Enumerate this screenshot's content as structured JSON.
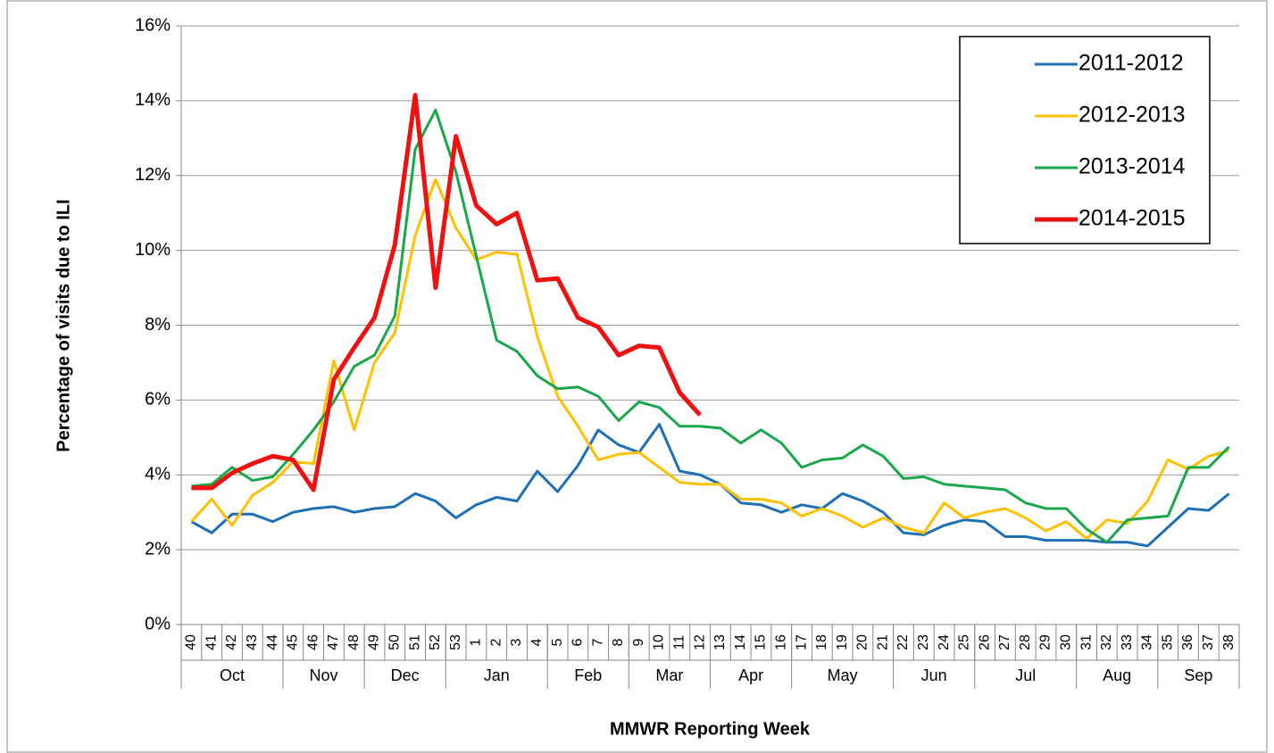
{
  "chart_data": {
    "type": "line",
    "y_label": "Percentage of visits due to ILI",
    "x_label": "MMWR Reporting Week",
    "categories": [
      "40",
      "41",
      "42",
      "43",
      "44",
      "45",
      "46",
      "47",
      "48",
      "49",
      "50",
      "51",
      "52",
      "53",
      "1",
      "2",
      "3",
      "4",
      "5",
      "6",
      "7",
      "8",
      "9",
      "10",
      "11",
      "12",
      "13",
      "14",
      "15",
      "16",
      "17",
      "18",
      "19",
      "20",
      "21",
      "22",
      "23",
      "24",
      "25",
      "26",
      "27",
      "28",
      "29",
      "30",
      "31",
      "32",
      "33",
      "34",
      "35",
      "36",
      "37",
      "38"
    ],
    "month_spans": [
      {
        "label": "Oct",
        "count": 5
      },
      {
        "label": "Nov",
        "count": 4
      },
      {
        "label": "Dec",
        "count": 4
      },
      {
        "label": "Jan",
        "count": 5
      },
      {
        "label": "Feb",
        "count": 4
      },
      {
        "label": "Mar",
        "count": 4
      },
      {
        "label": "Apr",
        "count": 4
      },
      {
        "label": "May",
        "count": 5
      },
      {
        "label": "Jun",
        "count": 4
      },
      {
        "label": "Jul",
        "count": 5
      },
      {
        "label": "Aug",
        "count": 4
      },
      {
        "label": "Sep",
        "count": 4
      }
    ],
    "ylim": [
      0,
      16
    ],
    "yticks": [
      {
        "value": 0,
        "label": "0%"
      },
      {
        "value": 2,
        "label": "2%"
      },
      {
        "value": 4,
        "label": "4%"
      },
      {
        "value": 6,
        "label": "6%"
      },
      {
        "value": 8,
        "label": "8%"
      },
      {
        "value": 10,
        "label": "10%"
      },
      {
        "value": 12,
        "label": "12%"
      },
      {
        "value": 14,
        "label": "14%"
      },
      {
        "value": 16,
        "label": "16%"
      }
    ],
    "grid": true,
    "legend": "upper right",
    "series": [
      {
        "name": "2011-2012",
        "color": "#1f6fb5",
        "width": 3,
        "values": [
          2.75,
          2.45,
          2.95,
          2.95,
          2.75,
          3.0,
          3.1,
          3.15,
          3.0,
          3.1,
          3.15,
          3.5,
          3.3,
          2.85,
          3.2,
          3.4,
          3.3,
          4.1,
          3.55,
          4.25,
          5.2,
          4.8,
          4.6,
          5.35,
          4.1,
          4.0,
          3.75,
          3.25,
          3.2,
          3.0,
          3.2,
          3.1,
          3.5,
          3.3,
          3.0,
          2.45,
          2.4,
          2.65,
          2.8,
          2.75,
          2.35,
          2.35,
          2.25,
          2.25,
          2.25,
          2.2,
          2.2,
          2.1,
          2.6,
          3.1,
          3.05,
          3.5
        ]
      },
      {
        "name": "2012-2013",
        "color": "#ffc000",
        "width": 3,
        "values": [
          2.75,
          3.35,
          2.65,
          3.45,
          3.8,
          4.35,
          4.3,
          7.05,
          5.2,
          7.0,
          7.8,
          10.4,
          11.9,
          10.6,
          9.75,
          9.95,
          9.9,
          7.7,
          6.1,
          5.3,
          4.4,
          4.55,
          4.6,
          4.2,
          3.8,
          3.75,
          3.75,
          3.35,
          3.35,
          3.25,
          2.9,
          3.1,
          2.9,
          2.6,
          2.85,
          2.6,
          2.45,
          3.25,
          2.85,
          3.0,
          3.1,
          2.85,
          2.5,
          2.75,
          2.3,
          2.8,
          2.7,
          3.3,
          4.4,
          4.15,
          4.5,
          4.65
        ]
      },
      {
        "name": "2013-2014",
        "color": "#1aa64a",
        "width": 3,
        "values": [
          3.7,
          3.75,
          4.2,
          3.85,
          3.95,
          4.55,
          5.2,
          5.95,
          6.9,
          7.2,
          8.25,
          12.7,
          13.75,
          12.1,
          9.85,
          7.6,
          7.3,
          6.65,
          6.3,
          6.35,
          6.1,
          5.45,
          5.95,
          5.8,
          5.3,
          5.3,
          5.25,
          4.85,
          5.2,
          4.85,
          4.2,
          4.4,
          4.45,
          4.8,
          4.5,
          3.9,
          3.95,
          3.75,
          3.7,
          3.65,
          3.6,
          3.25,
          3.1,
          3.1,
          2.55,
          2.2,
          2.8,
          2.85,
          2.9,
          4.2,
          4.2,
          4.75
        ]
      },
      {
        "name": "2014-2015",
        "color": "#ee1111",
        "width": 5,
        "values": [
          3.65,
          3.65,
          4.05,
          4.3,
          4.5,
          4.4,
          3.6,
          6.55,
          7.4,
          8.2,
          10.15,
          14.15,
          9.0,
          13.05,
          11.2,
          10.7,
          11.0,
          9.2,
          9.25,
          8.2,
          7.95,
          7.2,
          7.45,
          7.4,
          6.2,
          5.6,
          null,
          null,
          null,
          null,
          null,
          null,
          null,
          null,
          null,
          null,
          null,
          null,
          null,
          null,
          null,
          null,
          null,
          null,
          null,
          null,
          null,
          null,
          null,
          null,
          null,
          null
        ]
      }
    ]
  }
}
